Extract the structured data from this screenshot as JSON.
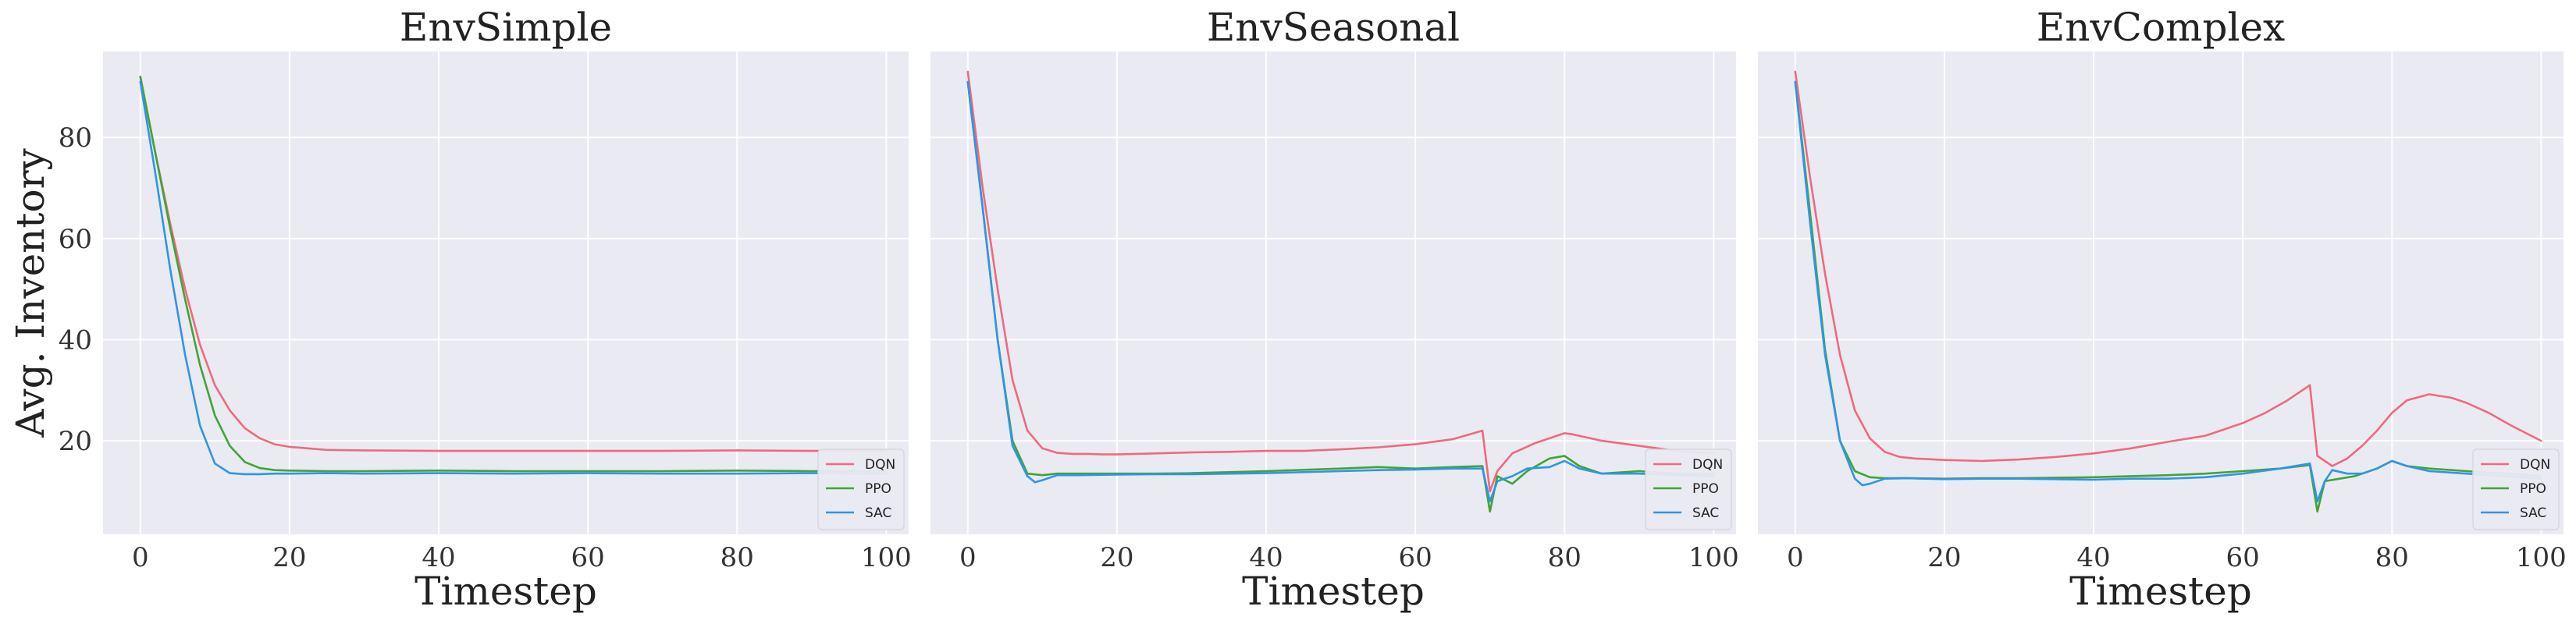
{
  "figure": {
    "ylabel": "Avg. Inventory"
  },
  "style": {
    "plot_background": "#eaeaf2",
    "grid_color": "#ffffff",
    "legend_background": "#eaeaf2"
  },
  "chart_data": [
    {
      "type": "line",
      "title": "EnvSimple",
      "xlabel": "Timestep",
      "ylabel": "Avg. Inventory",
      "xlim": [
        -5,
        103
      ],
      "ylim": [
        1.5,
        97
      ],
      "xticks": [
        0,
        20,
        40,
        60,
        80,
        100
      ],
      "yticks": [
        20,
        40,
        60,
        80
      ],
      "grid": true,
      "legend_position": "lower-right",
      "series": [
        {
          "name": "DQN",
          "color": "#f0697c",
          "x": [
            0,
            2,
            4,
            6,
            8,
            10,
            12,
            14,
            16,
            18,
            20,
            25,
            30,
            40,
            50,
            60,
            70,
            80,
            90,
            100
          ],
          "y": [
            92,
            77,
            63,
            50,
            39,
            31,
            26,
            22.5,
            20.5,
            19.3,
            18.8,
            18.2,
            18.1,
            18.0,
            18.0,
            18.0,
            18.0,
            18.1,
            18.0,
            18.0
          ]
        },
        {
          "name": "PPO",
          "color": "#3fa535",
          "x": [
            0,
            2,
            4,
            6,
            8,
            10,
            12,
            14,
            16,
            18,
            20,
            25,
            30,
            40,
            50,
            60,
            70,
            80,
            90,
            100
          ],
          "y": [
            92,
            77,
            62,
            48,
            35,
            25,
            19,
            15.8,
            14.6,
            14.2,
            14.1,
            14.0,
            14.0,
            14.1,
            14.0,
            14.0,
            14.0,
            14.1,
            14.0,
            14.0
          ]
        },
        {
          "name": "SAC",
          "color": "#2e95e8",
          "x": [
            0,
            2,
            4,
            6,
            8,
            10,
            12,
            14,
            16,
            18,
            20,
            25,
            30,
            40,
            50,
            60,
            70,
            80,
            90,
            100
          ],
          "y": [
            91,
            73,
            54,
            37,
            23,
            15.5,
            13.6,
            13.4,
            13.4,
            13.5,
            13.5,
            13.6,
            13.5,
            13.6,
            13.5,
            13.6,
            13.5,
            13.5,
            13.6,
            13.5
          ]
        }
      ]
    },
    {
      "type": "line",
      "title": "EnvSeasonal",
      "xlabel": "Timestep",
      "ylabel": "",
      "xlim": [
        -5,
        103
      ],
      "ylim": [
        1.5,
        97
      ],
      "xticks": [
        0,
        20,
        40,
        60,
        80,
        100
      ],
      "yticks": [
        20,
        40,
        60,
        80
      ],
      "grid": true,
      "legend_position": "lower-right",
      "series": [
        {
          "name": "DQN",
          "color": "#f0697c",
          "x": [
            0,
            2,
            4,
            6,
            8,
            10,
            12,
            14,
            16,
            18,
            20,
            25,
            30,
            35,
            40,
            45,
            50,
            55,
            60,
            65,
            69,
            70,
            71,
            73,
            76,
            80,
            81,
            85,
            90,
            95,
            100
          ],
          "y": [
            93,
            70,
            50,
            32,
            22,
            18.5,
            17.6,
            17.4,
            17.4,
            17.3,
            17.3,
            17.5,
            17.7,
            17.8,
            18.0,
            18.0,
            18.3,
            18.7,
            19.3,
            20.3,
            22,
            10,
            14,
            17.5,
            19.5,
            21.5,
            21.3,
            20,
            19,
            18,
            17.5
          ]
        },
        {
          "name": "PPO",
          "color": "#3fa535",
          "x": [
            0,
            2,
            4,
            6,
            8,
            10,
            12,
            15,
            20,
            25,
            30,
            40,
            50,
            55,
            60,
            65,
            69,
            70,
            71,
            73,
            75,
            78,
            80,
            82,
            85,
            90,
            95,
            100
          ],
          "y": [
            91,
            66,
            40,
            20,
            13.5,
            13.2,
            13.5,
            13.5,
            13.5,
            13.5,
            13.6,
            14.0,
            14.5,
            14.8,
            14.5,
            14.8,
            15,
            6,
            13,
            11.5,
            14,
            16.5,
            17,
            15,
            13.5,
            14,
            13.5,
            13.5
          ]
        },
        {
          "name": "SAC",
          "color": "#2e95e8",
          "x": [
            0,
            2,
            4,
            6,
            8,
            9,
            10,
            12,
            15,
            20,
            25,
            30,
            40,
            50,
            55,
            60,
            65,
            69,
            70,
            71,
            73,
            75,
            78,
            80,
            82,
            85,
            90,
            95,
            100
          ],
          "y": [
            91,
            66,
            40,
            19,
            13,
            11.8,
            12.2,
            13.2,
            13.2,
            13.3,
            13.4,
            13.4,
            13.6,
            14.0,
            14.2,
            14.3,
            14.5,
            14.5,
            8,
            12,
            13,
            14.5,
            14.8,
            16,
            14.5,
            13.5,
            13.5,
            13.2,
            13.0
          ]
        }
      ]
    },
    {
      "type": "line",
      "title": "EnvComplex",
      "xlabel": "Timestep",
      "ylabel": "",
      "xlim": [
        -5,
        103
      ],
      "ylim": [
        1.5,
        97
      ],
      "xticks": [
        0,
        20,
        40,
        60,
        80,
        100
      ],
      "yticks": [
        20,
        40,
        60,
        80
      ],
      "grid": true,
      "legend_position": "lower-right",
      "series": [
        {
          "name": "DQN",
          "color": "#f0697c",
          "x": [
            0,
            2,
            4,
            6,
            8,
            10,
            12,
            14,
            16,
            20,
            25,
            30,
            35,
            40,
            45,
            50,
            55,
            60,
            63,
            66,
            69,
            70,
            72,
            74,
            76,
            78,
            80,
            82,
            85,
            88,
            90,
            93,
            96,
            100
          ],
          "y": [
            93,
            72,
            53,
            37,
            26,
            20.5,
            17.8,
            16.8,
            16.5,
            16.2,
            16.0,
            16.3,
            16.8,
            17.5,
            18.5,
            19.8,
            21.0,
            23.5,
            25.5,
            28,
            31,
            17,
            15,
            16.5,
            19,
            22,
            25.5,
            28,
            29.2,
            28.5,
            27.5,
            25.5,
            23,
            20
          ]
        },
        {
          "name": "PPO",
          "color": "#3fa535",
          "x": [
            0,
            2,
            4,
            6,
            8,
            10,
            12,
            15,
            20,
            25,
            30,
            40,
            50,
            55,
            60,
            65,
            69,
            70,
            71,
            73,
            75,
            78,
            80,
            82,
            85,
            90,
            95,
            100
          ],
          "y": [
            91,
            65,
            38,
            20,
            14,
            12.8,
            12.6,
            12.6,
            12.5,
            12.6,
            12.6,
            12.8,
            13.2,
            13.5,
            14.0,
            14.5,
            15.2,
            6,
            12,
            12.5,
            13,
            14.5,
            16,
            15,
            14.5,
            14,
            13.5,
            13
          ]
        },
        {
          "name": "SAC",
          "color": "#2e95e8",
          "x": [
            0,
            2,
            4,
            6,
            8,
            9,
            10,
            12,
            15,
            20,
            25,
            30,
            40,
            45,
            50,
            55,
            60,
            65,
            69,
            70,
            71,
            72,
            74,
            76,
            78,
            80,
            82,
            85,
            90,
            95,
            100
          ],
          "y": [
            91,
            63,
            37,
            20,
            12.5,
            11.2,
            11.5,
            12.5,
            12.6,
            12.4,
            12.5,
            12.5,
            12.3,
            12.5,
            12.5,
            12.8,
            13.5,
            14.5,
            15.5,
            8,
            12,
            14.2,
            13.5,
            13.5,
            14.5,
            16,
            15,
            14,
            13.5,
            13,
            12.5
          ]
        }
      ]
    }
  ]
}
